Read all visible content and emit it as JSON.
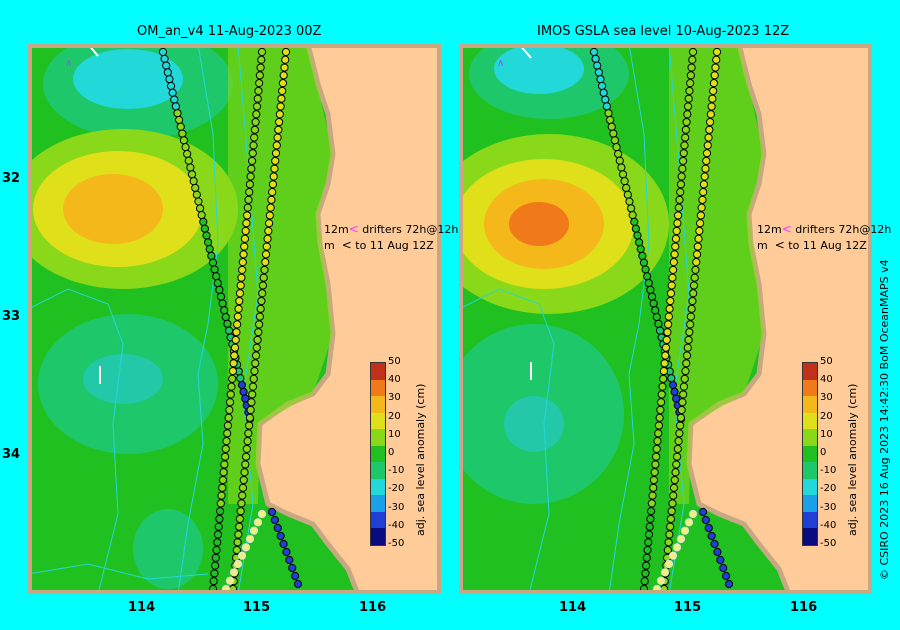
{
  "panels": [
    {
      "title": "OM_an_v4  11-Aug-2023 00Z"
    },
    {
      "title": "IMOS GSLA sea level  10-Aug-2023 12Z"
    }
  ],
  "lat_ticks": [
    "32",
    "33",
    "34"
  ],
  "lon_ticks": [
    "114",
    "115",
    "116"
  ],
  "drifter_legend": {
    "line1_prefix": "12m",
    "line1_text": "drifters 72h@12h",
    "line2_prefix": "m",
    "line2_text": "to 11 Aug 12Z",
    "color1": "#ff33ff",
    "color2": "#000000"
  },
  "colorbar": {
    "label": "adj. sea level anomaly (cm)",
    "ticks": [
      "50",
      "40",
      "30",
      "20",
      "10",
      "0",
      "-10",
      "-20",
      "-30",
      "-40",
      "-50"
    ],
    "colors": [
      "#0a0a80",
      "#1f3fd6",
      "#1aa0e8",
      "#22d8d8",
      "#1ec86a",
      "#20c020",
      "#8ad81a",
      "#e0e01a",
      "#f5b81a",
      "#f07a1a",
      "#c0301a"
    ]
  },
  "credit": "© CSIRO 2023   16 Aug 2023 14:42:30 BoM OceanMAPS v4",
  "colors": {
    "land": "#ffcc99",
    "coast": "#c8a882",
    "background": "#00ffff"
  }
}
